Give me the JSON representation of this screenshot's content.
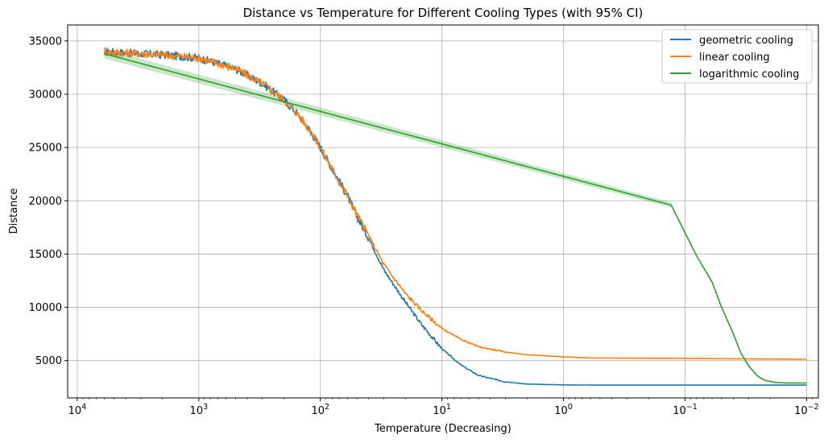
{
  "chart_data": {
    "type": "line",
    "title": "Distance vs Temperature for Different Cooling Types (with 95% CI)",
    "xlabel": "Temperature (Decreasing)",
    "ylabel": "Distance",
    "x_scale": "log",
    "x_reversed": true,
    "xlim": [
      12000,
      0.008
    ],
    "ylim": [
      1500,
      36500
    ],
    "grid": true,
    "legend_position": "top-right",
    "x_ticks": [
      {
        "value": 10000,
        "base": "10",
        "exp": "4"
      },
      {
        "value": 1000,
        "base": "10",
        "exp": "3"
      },
      {
        "value": 100,
        "base": "10",
        "exp": "2"
      },
      {
        "value": 10,
        "base": "10",
        "exp": "1"
      },
      {
        "value": 1,
        "base": "10",
        "exp": "0"
      },
      {
        "value": 0.1,
        "base": "10",
        "exp": "−1"
      },
      {
        "value": 0.01,
        "base": "10",
        "exp": "−2"
      }
    ],
    "y_ticks": [
      5000,
      10000,
      15000,
      20000,
      25000,
      30000,
      35000
    ],
    "y_tick_labels": [
      "5000",
      "10000",
      "15000",
      "20000",
      "25000",
      "30000",
      "35000"
    ],
    "series": [
      {
        "name": "geometric cooling",
        "color": "#1f77b4",
        "noisy": true,
        "x": [
          6000,
          3000,
          2000,
          1000,
          500,
          300,
          200,
          150,
          120,
          100,
          80,
          60,
          50,
          40,
          30,
          20,
          15,
          10,
          7,
          5,
          3,
          2,
          1,
          0.5,
          0.2,
          0.1,
          0.05,
          0.02,
          0.01
        ],
        "y": [
          34000,
          33800,
          33700,
          33400,
          32400,
          31000,
          29500,
          28000,
          26500,
          25000,
          23000,
          20500,
          18500,
          16500,
          13500,
          10500,
          8500,
          6100,
          4600,
          3600,
          3000,
          2800,
          2720,
          2700,
          2700,
          2700,
          2700,
          2700,
          2700
        ]
      },
      {
        "name": "linear cooling",
        "color": "#ff7f0e",
        "noisy": true,
        "x": [
          6000,
          3000,
          2000,
          1000,
          500,
          300,
          200,
          150,
          120,
          100,
          80,
          60,
          50,
          40,
          30,
          20,
          15,
          10,
          7,
          5,
          3,
          2,
          1,
          0.6,
          0.3,
          0.1,
          0.05,
          0.02,
          0.01
        ],
        "y": [
          34000,
          33800,
          33700,
          33400,
          32400,
          31000,
          29500,
          28000,
          26500,
          25000,
          23000,
          20500,
          18700,
          16700,
          14000,
          11300,
          9800,
          8000,
          7000,
          6300,
          5800,
          5550,
          5350,
          5250,
          5230,
          5200,
          5180,
          5150,
          5130
        ]
      },
      {
        "name": "logarithmic cooling",
        "color": "#2ca02c",
        "noisy": false,
        "x": [
          6000,
          0.13,
          0.1,
          0.08,
          0.06,
          0.05,
          0.04,
          0.035,
          0.03,
          0.025,
          0.022,
          0.018,
          0.015,
          0.01
        ],
        "y": [
          33800,
          19600,
          17000,
          14800,
          12400,
          10000,
          7500,
          5800,
          4500,
          3500,
          3150,
          2950,
          2900,
          2900
        ]
      }
    ],
    "ci_band": {
      "series": "logarithmic cooling",
      "color": "#2ca02c",
      "x": [
        6000,
        0.13
      ],
      "half_width": [
        450,
        250
      ]
    }
  }
}
